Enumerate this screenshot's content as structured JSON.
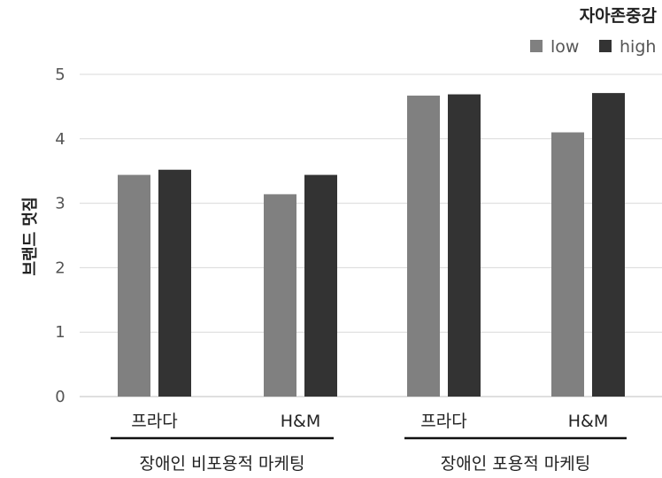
{
  "chart_data": {
    "type": "bar",
    "ylabel": "브랜드 멋짐",
    "ylim": [
      0,
      5
    ],
    "yticks": [
      "0",
      "1",
      "2",
      "3",
      "4",
      "5"
    ],
    "grid": true,
    "legend": {
      "title": "자아존중감",
      "placement": "top-right"
    },
    "categories": [
      "프라다",
      "H&M",
      "프라다",
      "H&M"
    ],
    "groups": [
      {
        "label": "장애인 비포용적 마케팅",
        "categories": [
          0,
          1
        ]
      },
      {
        "label": "장애인 포용적 마케팅",
        "categories": [
          2,
          3
        ]
      }
    ],
    "series": [
      {
        "name": "low",
        "color": "#808080",
        "values": [
          3.44,
          3.14,
          4.67,
          4.1
        ]
      },
      {
        "name": "high",
        "color": "#333333",
        "values": [
          3.52,
          3.44,
          4.69,
          4.71
        ]
      }
    ]
  }
}
